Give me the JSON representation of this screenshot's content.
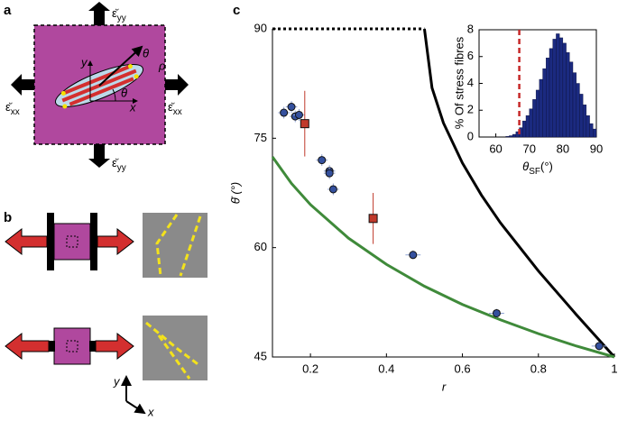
{
  "panel_a": {
    "label": "a",
    "strains": [
      {
        "symbol": "ε̆",
        "sub": "yy"
      },
      {
        "symbol": "ε̆",
        "sub": "yy"
      },
      {
        "symbol": "ε̆",
        "sub": "xx"
      },
      {
        "symbol": "ε̆",
        "sub": "xx"
      }
    ],
    "axis_x": "x",
    "axis_y": "y",
    "angle": "θ",
    "arrow_angle": "θ",
    "arrow_end": "ρ"
  },
  "panel_b": {
    "label": "b",
    "axis_x": "x",
    "axis_y": "y"
  },
  "panel_c": {
    "label": "c"
  },
  "chart_data": [
    {
      "type": "combo",
      "xlabel": "r",
      "ylabel": "θ̄ (°)",
      "xlim": [
        0.1,
        1
      ],
      "ylim": [
        45,
        90
      ],
      "xticks": [
        0.2,
        0.4,
        0.6,
        0.8,
        1
      ],
      "yticks": [
        45,
        60,
        75,
        90
      ],
      "series": [
        {
          "type": "line",
          "color": "#000000",
          "dash": true,
          "x": [
            0.1,
            0.5
          ],
          "values": [
            90,
            90
          ]
        },
        {
          "type": "line",
          "color": "#000000",
          "x": [
            0.5,
            0.52,
            0.55,
            0.6,
            0.65,
            0.7,
            0.8,
            0.9,
            1
          ],
          "values": [
            90,
            81.9,
            77.1,
            71.6,
            67.2,
            63.4,
            56.8,
            50.8,
            45
          ]
        },
        {
          "type": "line",
          "color": "#3f8a3a",
          "x": [
            0.1,
            0.15,
            0.2,
            0.3,
            0.4,
            0.5,
            0.6,
            0.7,
            0.8,
            0.9,
            1
          ],
          "values": [
            72.45,
            68.8,
            65.9,
            61.3,
            57.7,
            54.7,
            52.2,
            50.1,
            48.2,
            46.5,
            45
          ]
        },
        {
          "type": "scatter",
          "marker": "circle",
          "color": "#34509e",
          "err_color": "#8fa3d6",
          "x": [
            0.13,
            0.15,
            0.16,
            0.17,
            0.23,
            0.25,
            0.25,
            0.26,
            0.47,
            0.69,
            0.96
          ],
          "values": [
            78.5,
            79.3,
            78,
            78.2,
            72,
            70.5,
            70.2,
            68,
            59,
            51,
            46.5
          ],
          "xerr": [
            0.015,
            0.015,
            0.015,
            0.015,
            0.015,
            0.015,
            0.015,
            0.015,
            0.02,
            0.02,
            0.02
          ],
          "yerr": [
            0.8,
            0.8,
            0.8,
            0.8,
            0.8,
            0.8,
            0.8,
            0.8,
            0.6,
            0.6,
            0.6
          ]
        },
        {
          "type": "scatter",
          "marker": "square",
          "color": "#c0392b",
          "err_color": "#c0392b",
          "x": [
            0.185,
            0.365
          ],
          "values": [
            77,
            64
          ],
          "yerr": [
            4.5,
            3.5
          ]
        }
      ]
    },
    {
      "type": "histogram",
      "xlabel": {
        "main": "θ",
        "sub": "SF",
        "unit": "(°)"
      },
      "ylabel": "% Of stress fibres",
      "xlim": [
        55,
        90
      ],
      "ylim": [
        0,
        8
      ],
      "xticks": [
        60,
        70,
        80,
        90
      ],
      "yticks": [
        0,
        2,
        4,
        6,
        8
      ],
      "color": "#1b2a80",
      "threshold": 67,
      "threshold_color": "#c62828",
      "bins": [
        60,
        61,
        62,
        63,
        64,
        65,
        66,
        67,
        68,
        69,
        70,
        71,
        72,
        73,
        74,
        75,
        76,
        77,
        78,
        79,
        80,
        81,
        82,
        83,
        84,
        85,
        86,
        87,
        88,
        89,
        90
      ],
      "values": [
        0,
        0,
        0,
        0.05,
        0.1,
        0.2,
        0.4,
        0.7,
        1.2,
        1.6,
        2.1,
        2.8,
        3.5,
        4.3,
        5.1,
        5.9,
        6.6,
        7.3,
        7.7,
        7.4,
        7.0,
        6.3,
        5.6,
        4.8,
        4.0,
        3.2,
        2.4,
        1.6,
        1.0,
        0.6
      ]
    }
  ]
}
